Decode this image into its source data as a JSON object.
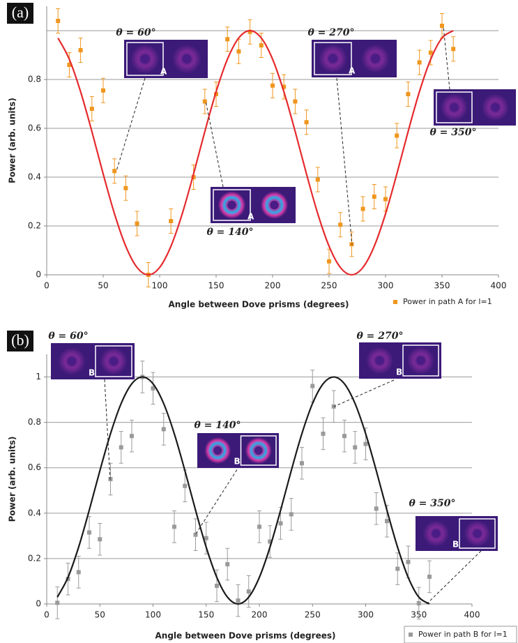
{
  "chart_data": [
    {
      "type": "scatter",
      "panel_label": "(a)",
      "xlabel": "Angle between Dove prisms (degrees)",
      "ylabel": "Power (arb. units)",
      "xlim": [
        0,
        400
      ],
      "xticks": [
        0,
        50,
        100,
        150,
        200,
        250,
        300,
        350,
        400
      ],
      "ylim": [
        0,
        1.1
      ],
      "yticks": [
        0,
        0.2,
        0.4,
        0.6,
        0.8
      ],
      "ygrid": [
        0.2,
        0.4,
        0.6,
        0.8,
        1
      ],
      "x": [
        10,
        20,
        30,
        40,
        50,
        60,
        70,
        80,
        90,
        100,
        110,
        120,
        130,
        140,
        150,
        160,
        170,
        180,
        190,
        200,
        210,
        220,
        230,
        240,
        250,
        260,
        270,
        280,
        290,
        300,
        310,
        320,
        330,
        340,
        350,
        360
      ],
      "series": [
        {
          "name": "Power in path A for l=1",
          "color": "#f0961e",
          "values": [
            1.04,
            0.86,
            0.92,
            0.68,
            0.755,
            0.425,
            0.355,
            0.21,
            0.0,
            null,
            0.22,
            null,
            0.4,
            0.71,
            0.74,
            0.965,
            0.915,
            0.995,
            0.94,
            0.775,
            0.77,
            0.71,
            0.625,
            0.39,
            0.055,
            0.205,
            0.125,
            0.27,
            0.32,
            0.31,
            0.57,
            0.74,
            0.87,
            0.91,
            1.02,
            0.925
          ],
          "errors": [
            0.05,
            0.05,
            0.05,
            0.05,
            0.05,
            0.05,
            0.05,
            0.05,
            0.05,
            null,
            0.05,
            null,
            0.05,
            0.05,
            0.05,
            0.05,
            0.05,
            0.05,
            0.05,
            0.05,
            0.05,
            0.05,
            0.05,
            0.05,
            0.05,
            0.05,
            0.05,
            0.05,
            0.05,
            0.05,
            0.05,
            0.05,
            0.05,
            0.05,
            0.05,
            0.05
          ]
        },
        {
          "type": "line",
          "color": "#e52a2d",
          "values": [
            0.97,
            0.883,
            0.75,
            0.587,
            0.413,
            0.25,
            0.117,
            0.03,
            0,
            0.03,
            0.117,
            0.25,
            0.413,
            0.587,
            0.75,
            0.883,
            0.97,
            1,
            0.97,
            0.883,
            0.75,
            0.587,
            0.413,
            0.25,
            0.117,
            0.03,
            0,
            0.03,
            0.117,
            0.25,
            0.413,
            0.587,
            0.75,
            0.883,
            0.97,
            1
          ]
        }
      ],
      "annotations": [
        {
          "text": "θ = 60°",
          "letter": "A"
        },
        {
          "text": "θ = 140°",
          "letter": "A"
        },
        {
          "text": "θ = 270°",
          "letter": "A"
        },
        {
          "text": "θ = 350°"
        }
      ]
    },
    {
      "type": "scatter",
      "panel_label": "(b)",
      "xlabel": "Angle between Dove prisms (degrees)",
      "ylabel": "Power (arb. units)",
      "xlim": [
        0,
        400
      ],
      "xticks": [
        0,
        50,
        100,
        150,
        200,
        250,
        300,
        350,
        400
      ],
      "ylim": [
        0,
        1.1
      ],
      "yticks": [
        0,
        0.2,
        0.4,
        0.6,
        0.8,
        1
      ],
      "ygrid": [
        0.2,
        0.4,
        0.6,
        0.8,
        1
      ],
      "x": [
        10,
        20,
        30,
        40,
        50,
        60,
        70,
        80,
        90,
        100,
        110,
        120,
        130,
        140,
        150,
        160,
        170,
        180,
        190,
        200,
        210,
        220,
        230,
        240,
        250,
        260,
        270,
        280,
        290,
        300,
        310,
        320,
        330,
        340,
        350,
        360
      ],
      "series": [
        {
          "name": "Power in path B for l=1",
          "color": "#9a9a9a",
          "values": [
            0.005,
            0.11,
            0.14,
            0.315,
            0.285,
            0.55,
            0.69,
            0.74,
            1.0,
            0.95,
            0.77,
            0.34,
            0.52,
            0.305,
            0.29,
            0.08,
            0.175,
            0.015,
            0.055,
            0.34,
            0.275,
            0.355,
            0.395,
            0.62,
            0.96,
            0.75,
            0.87,
            0.74,
            0.69,
            0.705,
            0.42,
            0.365,
            0.155,
            0.185,
            0.003,
            0.12
          ],
          "errors": [
            0.07,
            0.07,
            0.07,
            0.07,
            0.07,
            0.07,
            0.07,
            0.07,
            0.07,
            0.07,
            0.07,
            0.07,
            0.07,
            0.07,
            0.07,
            0.07,
            0.07,
            0.07,
            0.07,
            0.07,
            0.07,
            0.07,
            0.07,
            0.07,
            0.07,
            0.07,
            0.07,
            0.07,
            0.07,
            0.07,
            0.07,
            0.07,
            0.07,
            0.07,
            0.07,
            0.07
          ]
        },
        {
          "type": "line",
          "color": "#1a1a1a",
          "values": [
            0.03,
            0.117,
            0.25,
            0.413,
            0.587,
            0.75,
            0.883,
            0.97,
            1,
            0.97,
            0.883,
            0.75,
            0.587,
            0.413,
            0.25,
            0.117,
            0.03,
            0,
            0.03,
            0.117,
            0.25,
            0.413,
            0.587,
            0.75,
            0.883,
            0.97,
            1,
            0.97,
            0.883,
            0.75,
            0.587,
            0.413,
            0.25,
            0.117,
            0.03,
            0
          ]
        }
      ],
      "annotations": [
        {
          "text": "θ = 60°",
          "letter": "B"
        },
        {
          "text": "θ = 140°",
          "letter": "B"
        },
        {
          "text": "θ = 270°",
          "letter": "B"
        },
        {
          "text": "θ = 350°",
          "letter": "B"
        }
      ]
    }
  ]
}
